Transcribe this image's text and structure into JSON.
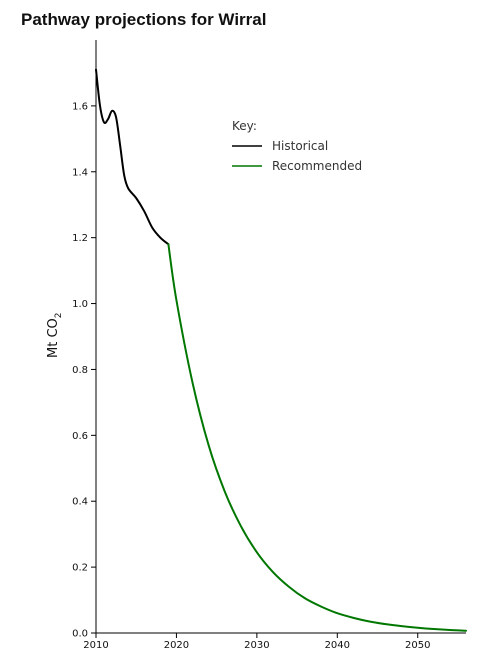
{
  "chart_data": {
    "type": "line",
    "title": "Pathway projections for Wirral",
    "ylabel_main": "Mt CO",
    "ylabel_sub": "2",
    "xlim": [
      2010,
      2056
    ],
    "ylim": [
      0,
      1.8
    ],
    "x_ticks": [
      "2010",
      "2020",
      "2030",
      "2040",
      "2050"
    ],
    "y_ticks": [
      "0.0",
      "0.2",
      "0.4",
      "0.6",
      "0.8",
      "1.0",
      "1.2",
      "1.4",
      "1.6"
    ],
    "legend_title": "Key:",
    "legend_position": "top-right",
    "series": [
      {
        "name": "Historical",
        "color": "#000000",
        "x": [
          2010,
          2010.5,
          2011,
          2011.5,
          2012,
          2012.5,
          2013,
          2013.5,
          2014,
          2015,
          2016,
          2017,
          2018,
          2019
        ],
        "y": [
          1.71,
          1.6,
          1.55,
          1.56,
          1.585,
          1.565,
          1.48,
          1.39,
          1.35,
          1.32,
          1.28,
          1.23,
          1.2,
          1.18
        ]
      },
      {
        "name": "Recommended",
        "color": "#007700",
        "x": [
          2019,
          2020,
          2022,
          2024,
          2026,
          2028,
          2030,
          2032,
          2034,
          2036,
          2038,
          2040,
          2042,
          2044,
          2046,
          2048,
          2050,
          2052,
          2054,
          2056
        ],
        "y": [
          1.18,
          1.01,
          0.76,
          0.57,
          0.43,
          0.325,
          0.245,
          0.185,
          0.14,
          0.105,
          0.08,
          0.06,
          0.046,
          0.035,
          0.027,
          0.021,
          0.016,
          0.012,
          0.009,
          0.007
        ]
      }
    ]
  }
}
